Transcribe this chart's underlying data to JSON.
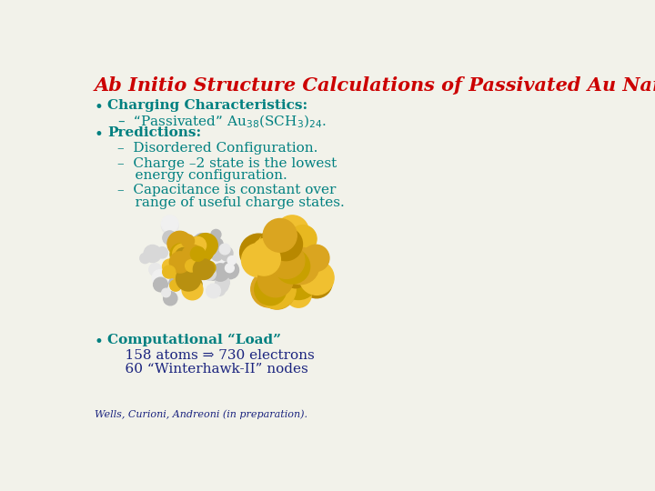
{
  "title": "Ab Initio Structure Calculations of Passivated Au Nanoclusters",
  "title_color": "#cc0000",
  "title_fontsize": 15,
  "title_style": "italic",
  "title_weight": "bold",
  "title_font": "serif",
  "background_color": "#f2f2ea",
  "bullet_color": "#008080",
  "dark_blue": "#1a237e",
  "bullet1_label": "Charging Characteristics:",
  "bullet1_sub": "–  “Passivated” Au$_{38}$(SCH$_3$)$_{24}$.",
  "bullet2_label": "Predictions:",
  "bullet2_sub1": "–  Disordered Configuration.",
  "bullet2_sub2a": "–  Charge –2 state is the lowest",
  "bullet2_sub2b": "    energy configuration.",
  "bullet2_sub3a": "–  Capacitance is constant over",
  "bullet2_sub3b": "    range of useful charge states.",
  "bullet3_label": "Computational “Load”",
  "bullet3_line1": "    158 atoms ⇒ 730 electrons",
  "bullet3_line2": "    60 “Winterhawk-II” nodes",
  "footer": "Wells, Curioni, Andreoni (in preparation).",
  "footer_color": "#1a237e",
  "footer_fontsize": 8,
  "text_fontsize": 11,
  "bullet_fontsize": 12
}
